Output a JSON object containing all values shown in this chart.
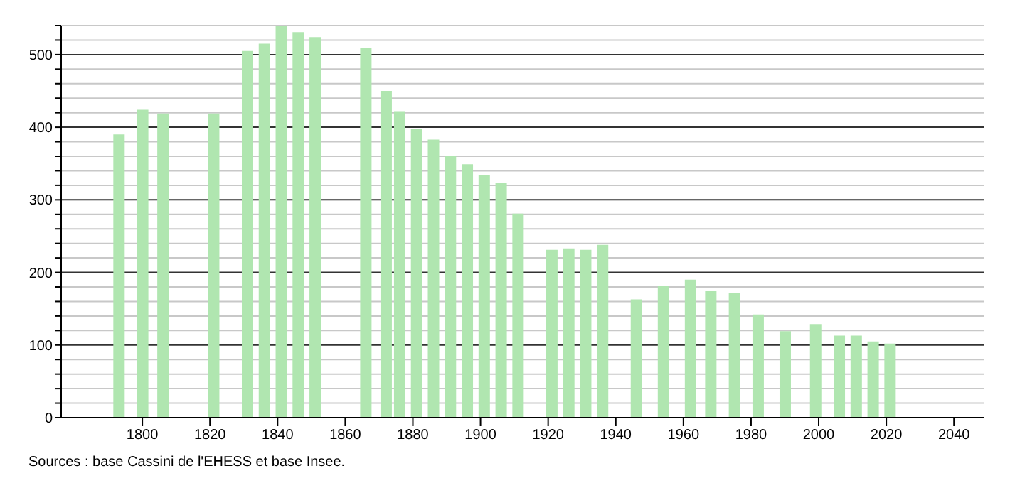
{
  "chart_data": {
    "type": "bar",
    "x": [
      1793,
      1800,
      1806,
      1821,
      1831,
      1836,
      1841,
      1846,
      1851,
      1866,
      1872,
      1876,
      1881,
      1886,
      1891,
      1896,
      1901,
      1906,
      1911,
      1921,
      1926,
      1931,
      1936,
      1946,
      1954,
      1962,
      1968,
      1975,
      1982,
      1990,
      1999,
      2006,
      2011,
      2016,
      2021
    ],
    "values": [
      390,
      424,
      419,
      419,
      505,
      515,
      540,
      531,
      524,
      509,
      450,
      422,
      398,
      383,
      360,
      349,
      334,
      323,
      281,
      231,
      233,
      231,
      238,
      163,
      181,
      190,
      175,
      172,
      142,
      119,
      129,
      113,
      113,
      105,
      102
    ],
    "color": "#b0e6b0",
    "xlim": [
      1776,
      2049
    ],
    "xticks": [
      1800,
      1820,
      1840,
      1860,
      1880,
      1900,
      1920,
      1940,
      1960,
      1980,
      2000,
      2020,
      2040
    ],
    "ylim": [
      0,
      540
    ],
    "yticks": [
      0,
      {
        "value": 20,
        "label": null
      },
      {
        "value": 40,
        "label": null
      },
      {
        "value": 60,
        "label": null
      },
      {
        "value": 80,
        "label": null
      },
      100,
      {
        "value": 120,
        "label": null
      },
      {
        "value": 140,
        "label": null
      },
      {
        "value": 160,
        "label": null
      },
      {
        "value": 180,
        "label": null
      },
      200,
      {
        "value": 220,
        "label": null
      },
      {
        "value": 240,
        "label": null
      },
      {
        "value": 260,
        "label": null
      },
      {
        "value": 280,
        "label": null
      },
      300,
      {
        "value": 320,
        "label": null
      },
      {
        "value": 340,
        "label": null
      },
      {
        "value": 360,
        "label": null
      },
      {
        "value": 380,
        "label": null
      },
      400,
      {
        "value": 420,
        "label": null
      },
      {
        "value": 440,
        "label": null
      },
      {
        "value": 460,
        "label": null
      },
      {
        "value": 480,
        "label": null
      },
      500,
      {
        "value": 520,
        "label": null
      },
      {
        "value": 540,
        "label": null
      }
    ],
    "grid": "y",
    "annotations": [
      "Sources : base Cassini de l'EHESS et base Insee."
    ]
  }
}
